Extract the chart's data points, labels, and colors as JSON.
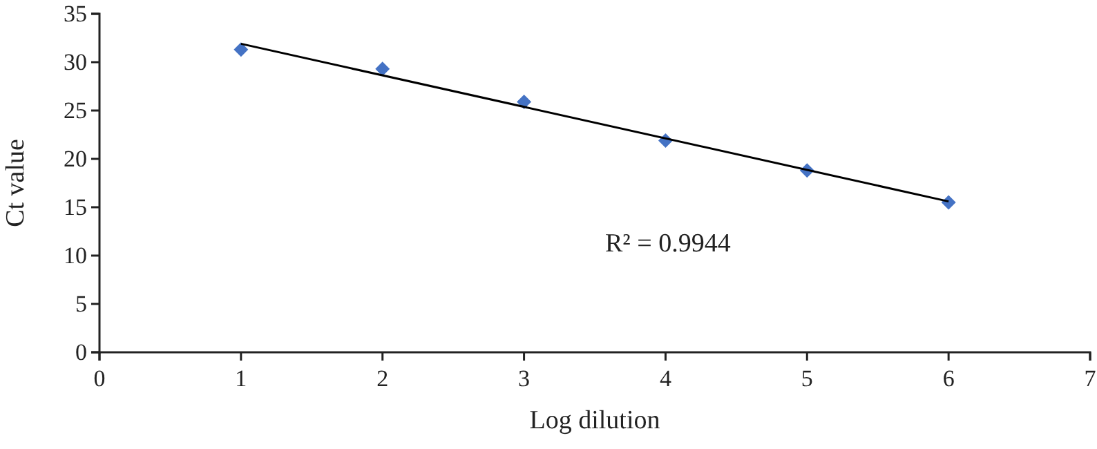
{
  "chart_data": {
    "type": "scatter",
    "xlabel": "Log dilution",
    "ylabel": "Ct value",
    "x": [
      1,
      2,
      3,
      4,
      5,
      6
    ],
    "series": [
      {
        "color": "#4472c4",
        "marker": "diamond",
        "values": [
          31.3,
          29.3,
          25.9,
          21.9,
          18.8,
          15.5
        ]
      },
      {
        "type": "line",
        "color": "#000000",
        "marker": "none",
        "line_style": "solid",
        "x": [
          1,
          6
        ],
        "values": [
          31.9,
          15.6
        ]
      }
    ],
    "xlim": [
      0,
      7
    ],
    "xticks": [
      0,
      1,
      2,
      3,
      4,
      5,
      6,
      7
    ],
    "ylim": [
      0,
      35
    ],
    "yticks": [
      0,
      5,
      10,
      15,
      20,
      25,
      30,
      35
    ],
    "grid": false,
    "annotations": [
      "R² = 0.9944"
    ]
  }
}
